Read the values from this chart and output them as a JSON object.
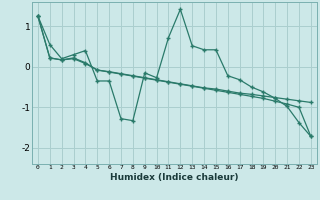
{
  "xlabel": "Humidex (Indice chaleur)",
  "bg_color": "#cce8e8",
  "line_color": "#2a7a6a",
  "grid_color": "#aacece",
  "xlim": [
    -0.5,
    23.5
  ],
  "ylim": [
    -2.4,
    1.6
  ],
  "yticks": [
    -2,
    -1,
    0,
    1
  ],
  "xticks": [
    0,
    1,
    2,
    3,
    4,
    5,
    6,
    7,
    8,
    9,
    10,
    11,
    12,
    13,
    14,
    15,
    16,
    17,
    18,
    19,
    20,
    21,
    22,
    23
  ],
  "line1_x": [
    0,
    1,
    2,
    3,
    4,
    5,
    6,
    7,
    8,
    9,
    10,
    11,
    12,
    13,
    14,
    15,
    16,
    17,
    18,
    19,
    20,
    21,
    22,
    23
  ],
  "line1_y": [
    1.25,
    0.55,
    0.2,
    0.3,
    0.4,
    -0.35,
    -0.35,
    -1.28,
    -1.33,
    -0.15,
    -0.27,
    0.72,
    1.42,
    0.52,
    0.42,
    0.42,
    -0.22,
    -0.32,
    -0.5,
    -0.62,
    -0.78,
    -0.98,
    -1.38,
    -1.72
  ],
  "line2_x": [
    0,
    1,
    2,
    3,
    4,
    5,
    6,
    7,
    8,
    9,
    10,
    11,
    12,
    13,
    14,
    15,
    16,
    17,
    18,
    19,
    20,
    21,
    22,
    23
  ],
  "line2_y": [
    1.25,
    0.22,
    0.17,
    0.22,
    0.1,
    -0.08,
    -0.12,
    -0.17,
    -0.22,
    -0.27,
    -0.32,
    -0.37,
    -0.42,
    -0.47,
    -0.52,
    -0.55,
    -0.6,
    -0.65,
    -0.68,
    -0.72,
    -0.76,
    -0.8,
    -0.84,
    -0.88
  ],
  "line3_x": [
    0,
    1,
    2,
    3,
    4,
    5,
    6,
    7,
    8,
    9,
    10,
    11,
    12,
    13,
    14,
    15,
    16,
    17,
    18,
    19,
    20,
    21,
    22,
    23
  ],
  "line3_y": [
    1.25,
    0.22,
    0.17,
    0.2,
    0.08,
    -0.08,
    -0.13,
    -0.18,
    -0.23,
    -0.28,
    -0.33,
    -0.38,
    -0.43,
    -0.48,
    -0.53,
    -0.58,
    -0.63,
    -0.68,
    -0.73,
    -0.78,
    -0.85,
    -0.92,
    -1.0,
    -1.72
  ]
}
